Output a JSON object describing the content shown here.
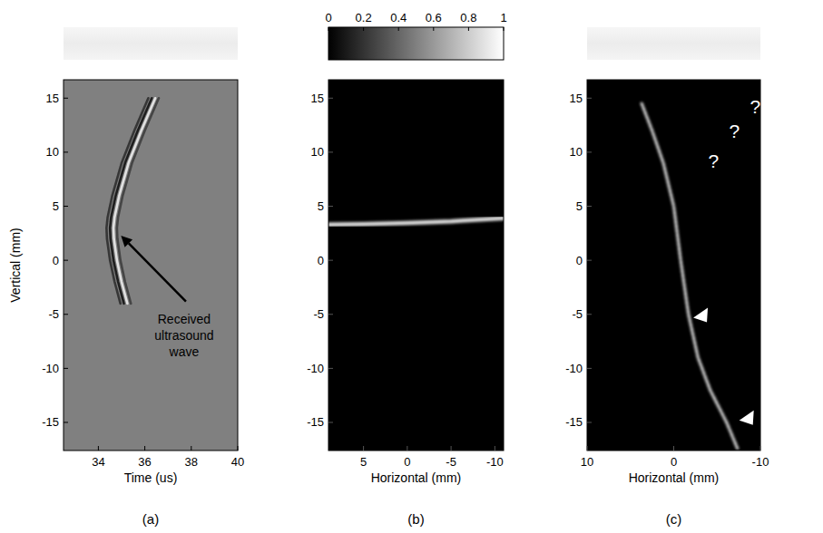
{
  "chart_data": [
    {
      "type": "line",
      "panel_label": "(a)",
      "x_label": "Time (us)",
      "y_label": "Vertical (mm)",
      "xlim": [
        32.5,
        40
      ],
      "xticks": [
        34,
        36,
        38,
        40
      ],
      "ylim": [
        -17.6,
        16.7
      ],
      "yticks": [
        -15,
        -10,
        -5,
        0,
        5,
        10,
        15
      ],
      "grid": false,
      "series": [
        {
          "color": "#2a2a2a",
          "line_style": "solid",
          "x": [
            36.15,
            35.55,
            35.0,
            34.6,
            34.4,
            34.35,
            34.37,
            34.5,
            34.7,
            34.95
          ],
          "values": [
            15,
            12,
            9,
            6,
            4,
            3,
            2,
            0,
            -2,
            -4
          ]
        },
        {
          "color": "#111111",
          "line_style": "solid",
          "x": [
            36.3,
            35.7,
            35.15,
            34.75,
            34.55,
            34.5,
            34.52,
            34.65,
            34.85,
            35.1
          ],
          "values": [
            15,
            12,
            9,
            6,
            4,
            3,
            2,
            0,
            -2,
            -4
          ]
        },
        {
          "color": "#f2f2f2",
          "line_style": "solid",
          "x": [
            36.45,
            35.85,
            35.3,
            34.9,
            34.7,
            34.65,
            34.67,
            34.8,
            35.0,
            35.25
          ],
          "values": [
            15,
            12,
            9,
            6,
            4,
            3,
            2,
            0,
            -2,
            -4
          ]
        },
        {
          "color": "#3a3a3a",
          "line_style": "solid",
          "x": [
            36.6,
            36.0,
            35.45,
            35.05,
            34.85,
            34.8,
            34.82,
            34.95,
            35.15,
            35.4
          ],
          "values": [
            15,
            12,
            9,
            6,
            4,
            3,
            2,
            0,
            -2,
            -4
          ]
        }
      ],
      "annotations": [
        {
          "text": "Received ultrasound wave",
          "x": 34.92,
          "y": 2.4
        }
      ]
    },
    {
      "type": "line",
      "panel_label": "(b)",
      "x_label": "Horizontal (mm)",
      "xlim": [
        9,
        -11
      ],
      "xticks": [
        5,
        0,
        -5,
        -10
      ],
      "ylim": [
        -17.6,
        16.7
      ],
      "yticks": [
        -15,
        -10,
        -5,
        0,
        5,
        10,
        15
      ],
      "grid": false,
      "colorbar": {
        "range": [
          0,
          1
        ],
        "ticks": [
          0,
          0.2,
          0.4,
          0.6,
          0.8,
          1
        ]
      },
      "series": [
        {
          "color": "#ffffff",
          "line_style": "solid",
          "x": [
            9,
            5,
            0,
            -5,
            -11
          ],
          "values": [
            3.3,
            3.35,
            3.45,
            3.6,
            3.9
          ]
        }
      ]
    },
    {
      "type": "line",
      "panel_label": "(c)",
      "x_label": "Horizontal (mm)",
      "xlim": [
        10,
        -10
      ],
      "xticks": [
        10,
        0,
        -10
      ],
      "ylim": [
        -17.6,
        16.7
      ],
      "yticks": [
        -15,
        -10,
        -5,
        0,
        5,
        10,
        15
      ],
      "grid": false,
      "series": [
        {
          "color": "#ffffff",
          "line_style": "dotted",
          "x": [
            3.7,
            2.5,
            1.2,
            0,
            -0.8,
            -1.7,
            -2.8,
            -4.2,
            -6.1,
            -7.4
          ],
          "values": [
            14.5,
            12,
            9,
            5,
            0,
            -5,
            -9,
            -12,
            -15,
            -17.5
          ]
        },
        {
          "type": "scatter",
          "marker": "triangle",
          "color": "#ffffff",
          "x": [
            -3.2,
            -8.5
          ],
          "values": [
            -4.9,
            -14.4
          ]
        }
      ],
      "annotations": [
        {
          "text": "?",
          "x": -4.6,
          "y": 8.6
        },
        {
          "text": "?",
          "x": -7.0,
          "y": 11.3
        },
        {
          "text": "?",
          "x": -9.4,
          "y": 13.6
        }
      ]
    }
  ]
}
